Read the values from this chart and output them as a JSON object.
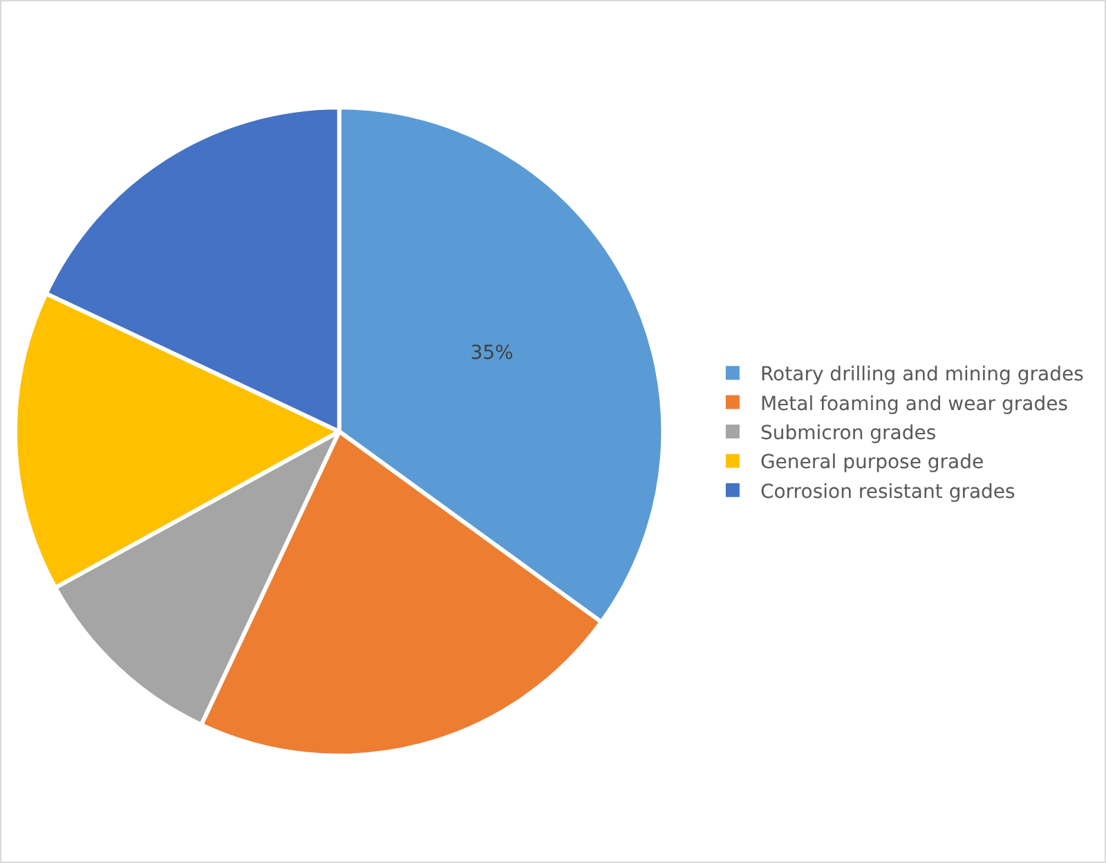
{
  "chart_data": {
    "type": "pie",
    "categories": [
      "Rotary drilling and mining grades",
      "Metal foaming and wear grades",
      "Submicron grades",
      "General purpose grade",
      "Corrosion resistant grades"
    ],
    "values": [
      35,
      22,
      10,
      15,
      18
    ],
    "value_labels": [
      "35%",
      null,
      null,
      null,
      null
    ],
    "colors": [
      "#5b9bd5",
      "#ed7d31",
      "#a5a5a5",
      "#ffc000",
      "#4472c4"
    ],
    "legend": "right"
  }
}
